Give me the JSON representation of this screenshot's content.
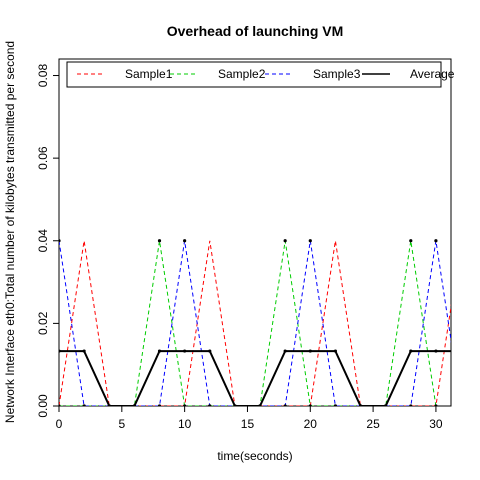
{
  "chart_data": {
    "type": "line",
    "title": "Overhead of launching VM",
    "xlabel": "time(seconds)",
    "ylabel": "Network Interface eth0:Total number of kilobytes transmitted per second",
    "xlim": [
      0,
      31.2
    ],
    "ylim": [
      0,
      0.084
    ],
    "x_ticks": [
      "0",
      "5",
      "10",
      "15",
      "20",
      "25",
      "30"
    ],
    "y_ticks": [
      "0.00",
      "0.02",
      "0.04",
      "0.06",
      "0.08"
    ],
    "grid": false,
    "legend_position": "top",
    "series": [
      {
        "name": "Sample1",
        "color": "#ff0000",
        "style": "dashed",
        "markers": false,
        "x": [
          0,
          2,
          4,
          6,
          8,
          10,
          12,
          14,
          16,
          18,
          20,
          22,
          24,
          26,
          28,
          30,
          32
        ],
        "y": [
          0,
          0.04,
          0,
          0,
          0,
          0,
          0.04,
          0,
          0,
          0,
          0,
          0.04,
          0,
          0,
          0,
          0,
          0.04
        ]
      },
      {
        "name": "Sample2",
        "color": "#00cc00",
        "style": "dashed",
        "markers": true,
        "x": [
          0,
          2,
          4,
          6,
          8,
          10,
          12,
          14,
          16,
          18,
          20,
          22,
          24,
          26,
          28,
          30
        ],
        "y": [
          0,
          0,
          0,
          0,
          0.04,
          0,
          0,
          0,
          0,
          0.04,
          0,
          0,
          0,
          0,
          0.04,
          0
        ]
      },
      {
        "name": "Sample3",
        "color": "#0000ff",
        "style": "dashed",
        "markers": true,
        "x": [
          0,
          2,
          4,
          6,
          8,
          10,
          12,
          14,
          16,
          18,
          20,
          22,
          24,
          26,
          28,
          30,
          32
        ],
        "y": [
          0.04,
          0,
          0,
          0,
          0,
          0.04,
          0,
          0,
          0,
          0,
          0.04,
          0,
          0,
          0,
          0,
          0.04,
          0
        ]
      },
      {
        "name": "Average",
        "color": "#000000",
        "style": "solid",
        "markers": true,
        "x": [
          0,
          2,
          4,
          6,
          8,
          10,
          12,
          14,
          16,
          18,
          20,
          22,
          24,
          26,
          28,
          30,
          32
        ],
        "y": [
          0.0133,
          0.0133,
          0,
          0,
          0.0133,
          0.0133,
          0.0133,
          0,
          0,
          0.0133,
          0.0133,
          0.0133,
          0,
          0,
          0.0133,
          0.0133,
          0.0133
        ]
      }
    ]
  }
}
